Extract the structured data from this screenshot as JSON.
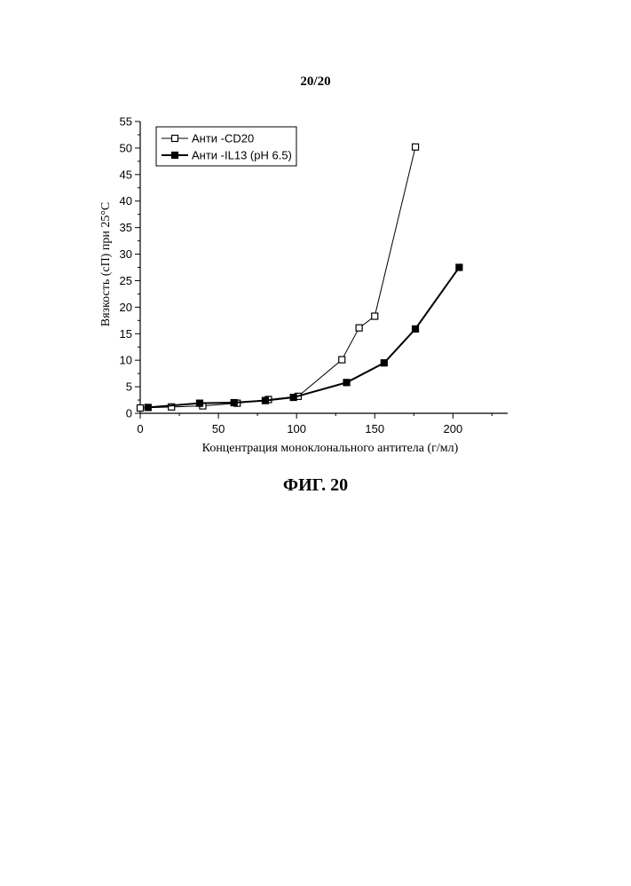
{
  "page_number": "20/20",
  "figure_label": "ФИГ. 20",
  "chart_data": {
    "type": "line",
    "xlabel": "Концентрация моноклонального антитела (г/мл)",
    "ylabel": "Вязкость (сП) при 25°C",
    "xlim": [
      0,
      235
    ],
    "ylim": [
      0,
      55
    ],
    "x_ticks": [
      0,
      50,
      100,
      150,
      200
    ],
    "y_ticks": [
      0,
      5,
      10,
      15,
      20,
      25,
      30,
      35,
      40,
      45,
      50,
      55
    ],
    "legend_position": "top-left",
    "series": [
      {
        "name": "Анти -CD20",
        "marker": "open-square",
        "color": "#000000",
        "x": [
          0,
          20,
          40,
          62,
          82,
          101,
          129,
          140,
          150,
          176
        ],
        "y": [
          1.0,
          1.2,
          1.4,
          1.9,
          2.6,
          3.2,
          10.1,
          16.1,
          18.3,
          50.2
        ]
      },
      {
        "name": "Анти -IL13 (pH 6.5)",
        "marker": "filled-square",
        "color": "#000000",
        "x": [
          5,
          38,
          60,
          80,
          98,
          132,
          156,
          176,
          204
        ],
        "y": [
          1.1,
          1.9,
          2.0,
          2.4,
          3.0,
          5.8,
          9.5,
          15.9,
          27.5
        ]
      }
    ]
  }
}
